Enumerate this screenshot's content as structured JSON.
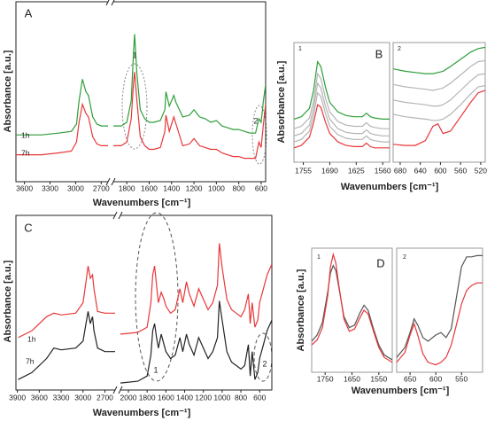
{
  "chart_data": [
    {
      "type": "line",
      "label": "A",
      "ylabel": "Absorbance [a.u.]",
      "xlabel": "Wavenumbers [cm⁻¹]",
      "ylim": [
        0,
        100
      ],
      "series": [
        {
          "name": "1h",
          "color": "#2e9e3a"
        },
        {
          "name": "7h",
          "color": "#e8373a"
        }
      ],
      "annotations": [
        "1",
        "2"
      ],
      "segments": [
        {
          "xlim": [
            3700,
            2620
          ],
          "xticks": [
            3600,
            3300,
            3000,
            2700
          ],
          "x": [
            3700,
            3400,
            3200,
            3050,
            2990,
            2960,
            2920,
            2880,
            2850,
            2800,
            2750,
            2700,
            2620
          ],
          "values": [
            [
              26,
              26,
              27,
              28,
              32,
              45,
              57,
              50,
              48,
              36,
              32,
              31,
              31
            ],
            [
              15,
              15,
              16,
              17,
              22,
              33,
              43,
              38,
              36,
              25,
              21,
              20,
              20
            ]
          ]
        },
        {
          "xlim": [
            1920,
            560
          ],
          "xticks": [
            1800,
            1600,
            1400,
            1200,
            1000,
            800,
            600
          ],
          "x": [
            1920,
            1850,
            1800,
            1760,
            1740,
            1730,
            1710,
            1680,
            1640,
            1600,
            1560,
            1500,
            1460,
            1450,
            1420,
            1380,
            1360,
            1300,
            1240,
            1200,
            1150,
            1100,
            1050,
            1000,
            950,
            900,
            850,
            800,
            750,
            700,
            650,
            620,
            600,
            580,
            560
          ],
          "values": [
            [
              31,
              31,
              33,
              45,
              72,
              82,
              60,
              40,
              35,
              33,
              33,
              34,
              40,
              50,
              42,
              48,
              44,
              36,
              37,
              40,
              36,
              35,
              33,
              34,
              31,
              30,
              29,
              29,
              28,
              27,
              27,
              35,
              33,
              45,
              54
            ],
            [
              20,
              20,
              22,
              35,
              55,
              61,
              45,
              25,
              20,
              18,
              18,
              19,
              28,
              37,
              28,
              36,
              32,
              20,
              21,
              24,
              20,
              19,
              18,
              18,
              16,
              15,
              14,
              14,
              13,
              13,
              13,
              22,
              19,
              32,
              43
            ]
          ]
        }
      ]
    },
    {
      "type": "line",
      "label": "B",
      "ylabel": "Absorbance [a.u.]",
      "xlabel": "Wavenumbers [cm⁻¹]",
      "ylim": [
        0,
        100
      ],
      "subpanels": [
        {
          "label": "1",
          "xlim": [
            1778,
            1543
          ],
          "xticks": [
            1755,
            1690,
            1625,
            1560
          ],
          "x": [
            1778,
            1760,
            1740,
            1730,
            1720,
            1712,
            1700,
            1690,
            1670,
            1650,
            1630,
            1610,
            1600,
            1590,
            1580,
            1560,
            1543
          ],
          "series": [
            {
              "color": "#2e9e3a",
              "values": [
                36,
                38,
                45,
                60,
                84,
                80,
                62,
                50,
                42,
                39,
                38,
                38,
                41,
                38,
                37,
                36,
                36
              ]
            },
            {
              "color": "#b5b5b5",
              "values": [
                28,
                30,
                37,
                51,
                74,
                70,
                53,
                42,
                34,
                31,
                30,
                30,
                33,
                30,
                29,
                28,
                28
              ]
            },
            {
              "color": "#b5b5b5",
              "values": [
                22,
                24,
                31,
                45,
                66,
                62,
                46,
                36,
                28,
                25,
                24,
                24,
                27,
                24,
                23,
                22,
                22
              ]
            },
            {
              "color": "#b5b5b5",
              "values": [
                17,
                19,
                26,
                39,
                58,
                55,
                40,
                30,
                23,
                20,
                19,
                19,
                22,
                19,
                18,
                17,
                17
              ]
            },
            {
              "color": "#e8373a",
              "values": [
                12,
                14,
                21,
                33,
                48,
                46,
                33,
                24,
                17,
                14,
                13,
                13,
                16,
                13,
                12,
                12,
                12
              ]
            }
          ]
        },
        {
          "label": "2",
          "xlim": [
            694,
            511
          ],
          "xticks": [
            680,
            640,
            600,
            560,
            520
          ],
          "x": [
            694,
            670,
            650,
            630,
            615,
            605,
            595,
            580,
            560,
            540,
            525,
            511
          ],
          "series": [
            {
              "color": "#2e9e3a",
              "values": [
                78,
                76,
                75,
                74,
                74,
                75,
                76,
                80,
                86,
                92,
                95,
                96
              ]
            },
            {
              "color": "#b5b5b5",
              "values": [
                65,
                63,
                62,
                61,
                60,
                61,
                62,
                66,
                73,
                80,
                84,
                85
              ]
            },
            {
              "color": "#b5b5b5",
              "values": [
                52,
                50,
                49,
                48,
                47,
                47,
                48,
                52,
                60,
                68,
                73,
                74
              ]
            },
            {
              "color": "#b5b5b5",
              "values": [
                40,
                38,
                37,
                36,
                35,
                35,
                36,
                40,
                48,
                57,
                63,
                64
              ]
            },
            {
              "color": "#e8373a",
              "values": [
                15,
                14,
                14,
                18,
                30,
                32,
                24,
                26,
                38,
                50,
                58,
                60
              ]
            }
          ]
        }
      ]
    },
    {
      "type": "line",
      "label": "C",
      "ylabel": "Absorbance [a.u.]",
      "xlabel": "Wavenumbers [cm⁻¹]",
      "ylim": [
        0,
        100
      ],
      "series": [
        {
          "name": "1h",
          "color": "#e8373a"
        },
        {
          "name": "7h",
          "color": "#222222"
        }
      ],
      "annotations": [
        "1",
        "2"
      ],
      "segments": [
        {
          "xlim": [
            3920,
            2560
          ],
          "xticks": [
            3900,
            3600,
            3300,
            3000,
            2700
          ],
          "x": [
            3890,
            3700,
            3500,
            3400,
            3300,
            3100,
            3000,
            2960,
            2930,
            2900,
            2870,
            2850,
            2800,
            2700,
            2560
          ],
          "values": [
            [
              30,
              34,
              42,
              44,
              43,
              44,
              50,
              62,
              71,
              64,
              66,
              58,
              45,
              44,
              44
            ],
            [
              6,
              10,
              18,
              24,
              23,
              24,
              28,
              38,
              45,
              38,
              42,
              34,
              24,
              22,
              22
            ]
          ]
        },
        {
          "xlim": [
            2085,
            470
          ],
          "xticks": [
            2000,
            1800,
            1600,
            1400,
            1200,
            1000,
            800,
            600
          ],
          "x": [
            2085,
            1900,
            1800,
            1760,
            1740,
            1720,
            1700,
            1680,
            1650,
            1620,
            1600,
            1550,
            1500,
            1450,
            1420,
            1380,
            1350,
            1300,
            1250,
            1200,
            1150,
            1100,
            1050,
            1030,
            1000,
            950,
            900,
            850,
            800,
            760,
            720,
            700,
            680,
            650,
            620,
            600,
            560,
            520,
            470
          ],
          "values": [
            [
              32,
              33,
              36,
              50,
              66,
              71,
              60,
              50,
              56,
              52,
              48,
              44,
              46,
              58,
              50,
              62,
              55,
              48,
              58,
              52,
              46,
              50,
              60,
              84,
              70,
              52,
              46,
              44,
              42,
              46,
              55,
              38,
              50,
              36,
              40,
              50,
              58,
              66,
              72
            ],
            [
              4,
              5,
              8,
              20,
              34,
              38,
              30,
              24,
              32,
              26,
              22,
              18,
              20,
              30,
              22,
              32,
              26,
              20,
              30,
              24,
              18,
              22,
              30,
              51,
              40,
              22,
              16,
              14,
              12,
              14,
              26,
              8,
              22,
              6,
              10,
              18,
              26,
              34,
              40
            ]
          ]
        }
      ]
    },
    {
      "type": "line",
      "label": "D",
      "ylabel": "Absorbance [a.u.]",
      "xlabel": "Wavenumbers [cm⁻¹]",
      "ylim": [
        0,
        100
      ],
      "subpanels": [
        {
          "label": "1",
          "xlim": [
            1800,
            1500
          ],
          "xticks": [
            1750,
            1650,
            1550
          ],
          "x": [
            1800,
            1780,
            1760,
            1740,
            1730,
            1720,
            1710,
            1700,
            1680,
            1660,
            1640,
            1620,
            1605,
            1590,
            1570,
            1550,
            1530,
            1500
          ],
          "series": [
            {
              "color": "#555555",
              "values": [
                25,
                30,
                40,
                65,
                80,
                86,
                82,
                70,
                45,
                36,
                38,
                48,
                54,
                50,
                35,
                22,
                14,
                10
              ]
            },
            {
              "color": "#e8373a",
              "values": [
                22,
                26,
                36,
                62,
                85,
                95,
                88,
                72,
                43,
                33,
                35,
                44,
                50,
                47,
                33,
                20,
                12,
                8
              ]
            }
          ]
        },
        {
          "label": "2",
          "xlim": [
            676,
            509
          ],
          "xticks": [
            650,
            600,
            550
          ],
          "x": [
            676,
            660,
            650,
            642,
            635,
            625,
            615,
            600,
            590,
            580,
            570,
            560,
            550,
            540,
            530,
            520,
            509
          ],
          "series": [
            {
              "color": "#555555",
              "values": [
                12,
                20,
                32,
                43,
                38,
                28,
                25,
                30,
                32,
                28,
                35,
                60,
                85,
                93,
                93,
                94,
                94
              ]
            },
            {
              "color": "#e8373a",
              "values": [
                8,
                16,
                30,
                39,
                30,
                15,
                8,
                6,
                8,
                12,
                22,
                38,
                55,
                66,
                70,
                72,
                72
              ]
            }
          ]
        }
      ]
    }
  ]
}
